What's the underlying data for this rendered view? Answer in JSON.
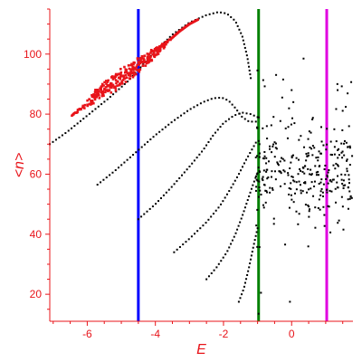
{
  "chart_data": {
    "type": "scatter",
    "title": "",
    "xlabel": "E",
    "ylabel": "<n>",
    "xlim": [
      -7.1,
      1.8
    ],
    "ylim": [
      11,
      115
    ],
    "x_ticks": [
      {
        "value": -6,
        "label": "-6"
      },
      {
        "value": -4,
        "label": "-4"
      },
      {
        "value": -2,
        "label": "-2"
      },
      {
        "value": 0,
        "label": "0"
      }
    ],
    "y_ticks": [
      {
        "value": 20,
        "label": "20"
      },
      {
        "value": 40,
        "label": "40"
      },
      {
        "value": 60,
        "label": "60"
      },
      {
        "value": 80,
        "label": "80"
      },
      {
        "value": 100,
        "label": "100"
      }
    ],
    "grid": false,
    "legend": "none",
    "colors": {
      "axis": "#e8141a",
      "points": "#000000",
      "highlight_points": "#e8141a",
      "line_blue": "#0000ff",
      "line_green": "#008000",
      "line_magenta": "#e000e0"
    },
    "vertical_lines": [
      {
        "x": -4.5,
        "color": "#0000ff"
      },
      {
        "x": -0.97,
        "color": "#008000"
      },
      {
        "x": 1.03,
        "color": "#e000e0"
      }
    ],
    "series": [
      {
        "color": "#000000",
        "kind": "branch",
        "points": [
          [
            -7.1,
            70
          ],
          [
            -6.6,
            74
          ],
          [
            -6.0,
            79.5
          ],
          [
            -5.4,
            85
          ],
          [
            -4.8,
            91
          ],
          [
            -4.0,
            101
          ],
          [
            -3.5,
            106.5
          ],
          [
            -3.0,
            110.5
          ],
          [
            -2.5,
            113
          ],
          [
            -2.15,
            114
          ],
          [
            -1.9,
            113.5
          ],
          [
            -1.65,
            111
          ],
          [
            -1.45,
            106
          ],
          [
            -1.3,
            99
          ],
          [
            -1.2,
            92
          ]
        ]
      },
      {
        "color": "#000000",
        "kind": "branch",
        "points": [
          [
            -5.7,
            56.5
          ],
          [
            -5.2,
            61
          ],
          [
            -4.5,
            68
          ],
          [
            -4.0,
            73
          ],
          [
            -3.5,
            77.5
          ],
          [
            -3.0,
            81.5
          ],
          [
            -2.6,
            84
          ],
          [
            -2.3,
            85.3
          ],
          [
            -2.05,
            85.5
          ],
          [
            -1.85,
            84.5
          ],
          [
            -1.65,
            82
          ],
          [
            -1.45,
            79
          ],
          [
            -1.25,
            77.5
          ],
          [
            -1.05,
            77.5
          ]
        ]
      },
      {
        "color": "#000000",
        "kind": "branch",
        "points": [
          [
            -4.5,
            45
          ],
          [
            -4.0,
            50
          ],
          [
            -3.5,
            56
          ],
          [
            -3.0,
            62.5
          ],
          [
            -2.6,
            68
          ],
          [
            -2.3,
            73
          ],
          [
            -2.0,
            77
          ],
          [
            -1.7,
            79.5
          ],
          [
            -1.45,
            80.5
          ],
          [
            -1.2,
            80
          ],
          [
            -1.0,
            79
          ]
        ]
      },
      {
        "color": "#000000",
        "kind": "branch",
        "points": [
          [
            -3.45,
            34
          ],
          [
            -3.0,
            38.5
          ],
          [
            -2.5,
            44
          ],
          [
            -2.1,
            49.5
          ],
          [
            -1.8,
            55
          ],
          [
            -1.55,
            60
          ],
          [
            -1.35,
            64.5
          ],
          [
            -1.2,
            67.5
          ],
          [
            -1.05,
            70.5
          ]
        ]
      },
      {
        "color": "#000000",
        "kind": "branch",
        "points": [
          [
            -2.5,
            25
          ],
          [
            -2.2,
            29
          ],
          [
            -1.9,
            34
          ],
          [
            -1.65,
            40
          ],
          [
            -1.45,
            46
          ],
          [
            -1.3,
            51
          ],
          [
            -1.15,
            56
          ],
          [
            -1.02,
            60
          ]
        ]
      },
      {
        "color": "#000000",
        "kind": "branch",
        "points": [
          [
            -1.55,
            17.5
          ],
          [
            -1.4,
            22
          ],
          [
            -1.25,
            29
          ],
          [
            -1.12,
            36
          ],
          [
            -1.0,
            42
          ]
        ]
      },
      {
        "color": "#e8141a",
        "kind": "band",
        "points": [
          [
            -6.45,
            79.5
          ],
          [
            -6.0,
            83.5
          ],
          [
            -5.6,
            87.5
          ],
          [
            -5.2,
            90.5
          ],
          [
            -4.8,
            93.5
          ],
          [
            -4.5,
            96.5
          ],
          [
            -4.2,
            99
          ],
          [
            -3.9,
            101.5
          ],
          [
            -3.6,
            104.5
          ],
          [
            -3.3,
            107.5
          ],
          [
            -3.0,
            110
          ],
          [
            -2.75,
            111.5
          ]
        ]
      },
      {
        "color": "#000000",
        "kind": "cloud",
        "x_range": [
          -1.05,
          1.8
        ],
        "y_range": [
          35,
          98
        ],
        "y_center": 61,
        "count": 320
      },
      {
        "color": "#000000",
        "kind": "scatter",
        "points": [
          [
            -0.05,
            17.5
          ],
          [
            -0.9,
            20.5
          ],
          [
            -0.97,
            13.5
          ],
          [
            1.35,
            88
          ],
          [
            0.35,
            98.5
          ],
          [
            0.0,
            88
          ],
          [
            0.05,
            84
          ]
        ]
      }
    ]
  }
}
